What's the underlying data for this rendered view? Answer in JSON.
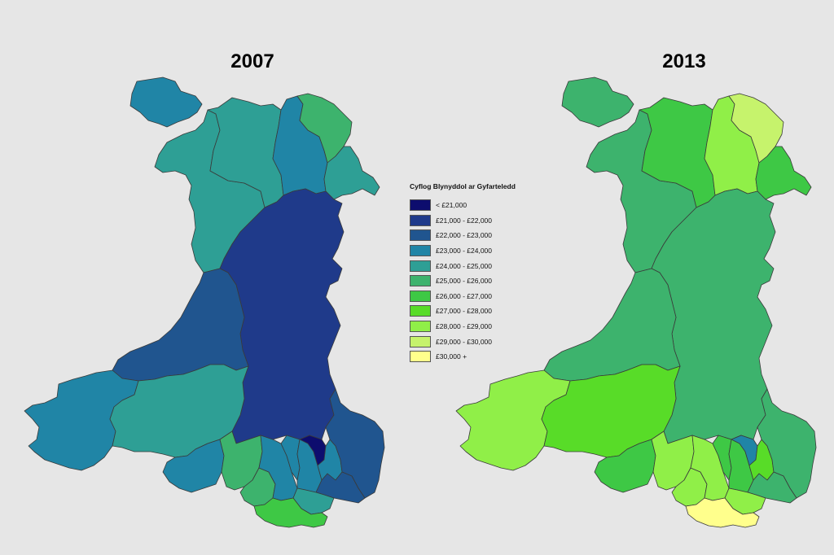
{
  "maps": {
    "left_title": "2007",
    "right_title": "2013"
  },
  "legend": {
    "title": "Cyflog Blynyddol ar Gyfarteledd",
    "items": [
      {
        "label": "< £21,000",
        "color": "#0d0d6e"
      },
      {
        "label": "£21,000 - £22,000",
        "color": "#1f3a8a"
      },
      {
        "label": "£22,000 - £23,000",
        "color": "#20558f"
      },
      {
        "label": "£23,000 - £24,000",
        "color": "#2085a6"
      },
      {
        "label": "£24,000 - £25,000",
        "color": "#2e9f95"
      },
      {
        "label": "£25,000 - £26,000",
        "color": "#3db36d"
      },
      {
        "label": "£26,000 - £27,000",
        "color": "#3ec845"
      },
      {
        "label": "£27,000 - £28,000",
        "color": "#58dc28"
      },
      {
        "label": "£28,000 - £29,000",
        "color": "#90ef48"
      },
      {
        "label": "£29,000 - £30,000",
        "color": "#c6f36c"
      },
      {
        "label": "£30,000 +",
        "color": "#ffff8c"
      }
    ]
  },
  "regions": {
    "anglesey": {
      "y2007": "£23,000 - £24,000",
      "y2013": "£25,000 - £26,000"
    },
    "gwynedd": {
      "y2007": "£24,000 - £25,000",
      "y2013": "£25,000 - £26,000"
    },
    "conwy": {
      "y2007": "£24,000 - £25,000",
      "y2013": "£26,000 - £27,000"
    },
    "denbighshire": {
      "y2007": "£23,000 - £24,000",
      "y2013": "£28,000 - £29,000"
    },
    "flintshire": {
      "y2007": "£25,000 - £26,000",
      "y2013": "£29,000 - £30,000"
    },
    "wrexham": {
      "y2007": "£24,000 - £25,000",
      "y2013": "£26,000 - £27,000"
    },
    "powys": {
      "y2007": "£21,000 - £22,000",
      "y2013": "£25,000 - £26,000"
    },
    "ceredigion": {
      "y2007": "£22,000 - £23,000",
      "y2013": "£25,000 - £26,000"
    },
    "pembrokeshire": {
      "y2007": "£23,000 - £24,000",
      "y2013": "£28,000 - £29,000"
    },
    "carmarthenshire": {
      "y2007": "£24,000 - £25,000",
      "y2013": "£27,000 - £28,000"
    },
    "swansea": {
      "y2007": "£23,000 - £24,000",
      "y2013": "£26,000 - £27,000"
    },
    "neath_port_talbot": {
      "y2007": "£25,000 - £26,000",
      "y2013": "£28,000 - £29,000"
    },
    "bridgend": {
      "y2007": "£25,000 - £26,000",
      "y2013": "£28,000 - £29,000"
    },
    "rhondda": {
      "y2007": "£23,000 - £24,000",
      "y2013": "£28,000 - £29,000"
    },
    "merthyr": {
      "y2007": "£23,000 - £24,000",
      "y2013": "£26,000 - £27,000"
    },
    "caerphilly": {
      "y2007": "£23,000 - £24,000",
      "y2013": "£26,000 - £27,000"
    },
    "blaenau_gwent": {
      "y2007": "< £21,000",
      "y2013": "£23,000 - £24,000"
    },
    "torfaen": {
      "y2007": "£23,000 - £24,000",
      "y2013": "£27,000 - £28,000"
    },
    "monmouthshire": {
      "y2007": "£22,000 - £23,000",
      "y2013": "£25,000 - £26,000"
    },
    "newport": {
      "y2007": "£22,000 - £23,000",
      "y2013": "£25,000 - £26,000"
    },
    "cardiff": {
      "y2007": "£24,000 - £25,000",
      "y2013": "£28,000 - £29,000"
    },
    "vale_of_glamorgan": {
      "y2007": "£26,000 - £27,000",
      "y2013": "£30,000 +"
    }
  }
}
